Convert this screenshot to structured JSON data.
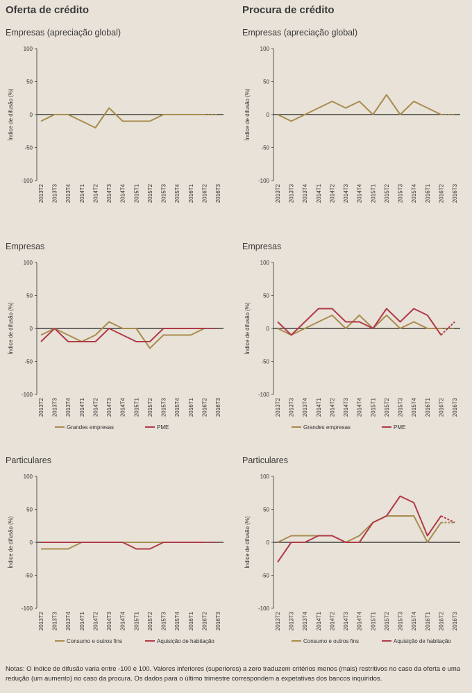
{
  "headers": {
    "left": "Oferta de crédito",
    "right": "Procura de crédito"
  },
  "colors": {
    "gold": "#a88c4e",
    "red": "#b13a48",
    "axis": "#555555",
    "zero": "#222222"
  },
  "notes": "Notas: O índice de difusão varia entre -100 e 100. Valores inferiores (superiores) a zero traduzem critérios menos (mais) restritivos no caso da oferta e uma redução (um aumento) no caso da procura. Os dados para o último trimestre correspondem a expetativas dos bancos inquiridos.",
  "chart_data": [
    {
      "id": "oferta-empresas-global",
      "type": "line",
      "title": "Empresas (apreciação global)",
      "ylabel": "Índice de difusão (%)",
      "ylim": [
        -100,
        100
      ],
      "yticks": [
        "100",
        "50",
        "0",
        "-50",
        "-100"
      ],
      "categories": [
        "2013T2",
        "2013T3",
        "2013T4",
        "2014T1",
        "2014T2",
        "2014T3",
        "2014T4",
        "2015T1",
        "2015T2",
        "2015T3",
        "2015T4",
        "2016T1",
        "2016T2",
        "2016T3"
      ],
      "series": [
        {
          "name": "",
          "color": "gold",
          "values": [
            -10,
            0,
            0,
            -10,
            -20,
            10,
            -10,
            -10,
            -10,
            0,
            0,
            0,
            0,
            0
          ],
          "dashed_last": true
        }
      ],
      "legend": []
    },
    {
      "id": "procura-empresas-global",
      "type": "line",
      "title": "Empresas (apreciação global)",
      "ylabel": "Índice de difusão (%)",
      "ylim": [
        -100,
        100
      ],
      "yticks": [
        "100",
        "50",
        "0",
        "-50",
        "-100"
      ],
      "categories": [
        "2013T2",
        "2013T3",
        "2013T4",
        "2014T1",
        "2014T2",
        "2014T3",
        "2014T4",
        "2015T1",
        "2015T2",
        "2015T3",
        "2015T4",
        "2016T1",
        "2016T2",
        "2016T3"
      ],
      "series": [
        {
          "name": "",
          "color": "gold",
          "values": [
            0,
            -10,
            0,
            10,
            20,
            10,
            20,
            0,
            30,
            0,
            20,
            10,
            0,
            0
          ],
          "dashed_last": true
        }
      ],
      "legend": []
    },
    {
      "id": "oferta-empresas",
      "type": "line",
      "title": "Empresas",
      "ylabel": "Índice de difusão (%)",
      "ylim": [
        -100,
        100
      ],
      "yticks": [
        "100",
        "50",
        "0",
        "-50",
        "-100"
      ],
      "categories": [
        "2013T2",
        "2013T3",
        "2013T4",
        "2014T1",
        "2014T2",
        "2014T3",
        "2014T4",
        "2015T1",
        "2015T2",
        "2015T3",
        "2015T4",
        "2016T1",
        "2016T2",
        "2016T3"
      ],
      "series": [
        {
          "name": "Grandes empresas",
          "color": "gold",
          "values": [
            -10,
            0,
            -10,
            -20,
            -10,
            10,
            0,
            0,
            -30,
            -10,
            -10,
            -10,
            0,
            0
          ],
          "dashed_last": true
        },
        {
          "name": "PME",
          "color": "red",
          "values": [
            -20,
            0,
            -20,
            -20,
            -20,
            0,
            -10,
            -20,
            -20,
            0,
            0,
            0,
            0,
            0
          ],
          "dashed_last": true
        }
      ],
      "legend": [
        "Grandes empresas",
        "PME"
      ]
    },
    {
      "id": "procura-empresas",
      "type": "line",
      "title": "Empresas",
      "ylabel": "Índice de difusão (%)",
      "ylim": [
        -100,
        100
      ],
      "yticks": [
        "100",
        "50",
        "0",
        "-50",
        "-100"
      ],
      "categories": [
        "2013T2",
        "2013T3",
        "2013T4",
        "2014T1",
        "2014T2",
        "2014T3",
        "2014T4",
        "2015T1",
        "2015T2",
        "2015T3",
        "2015T4",
        "2016T1",
        "2016T2",
        "2016T3"
      ],
      "series": [
        {
          "name": "Grandes empresas",
          "color": "gold",
          "values": [
            0,
            -10,
            0,
            10,
            20,
            0,
            20,
            0,
            20,
            0,
            10,
            0,
            0,
            0
          ],
          "dashed_last": true
        },
        {
          "name": "PME",
          "color": "red",
          "values": [
            10,
            -10,
            10,
            30,
            30,
            10,
            10,
            0,
            30,
            10,
            30,
            20,
            -10,
            10
          ],
          "dashed_last": true
        }
      ],
      "legend": [
        "Grandes empresas",
        "PME"
      ]
    },
    {
      "id": "oferta-particulares",
      "type": "line",
      "title": "Particulares",
      "ylabel": "Índice de difusão (%)",
      "ylim": [
        -100,
        100
      ],
      "yticks": [
        "100",
        "50",
        "0",
        "-50",
        "-100"
      ],
      "categories": [
        "2013T2",
        "2013T3",
        "2013T4",
        "2014T1",
        "2014T2",
        "2014T3",
        "2014T4",
        "2015T1",
        "2015T2",
        "2015T3",
        "2015T4",
        "2016T1",
        "2016T2",
        "2016T3"
      ],
      "series": [
        {
          "name": "Consumo e outros fins",
          "color": "gold",
          "values": [
            -10,
            -10,
            -10,
            0,
            0,
            0,
            0,
            0,
            0,
            0,
            0,
            0,
            0,
            0
          ],
          "dashed_last": true
        },
        {
          "name": "Aquisição de habitação",
          "color": "red",
          "values": [
            0,
            0,
            0,
            0,
            0,
            0,
            0,
            -10,
            -10,
            0,
            0,
            0,
            0,
            0
          ],
          "dashed_last": true
        }
      ],
      "legend": [
        "Consumo e outros fins",
        "Aquisição de habitação"
      ]
    },
    {
      "id": "procura-particulares",
      "type": "line",
      "title": "Particulares",
      "ylabel": "Índice de difusão (%)",
      "ylim": [
        -100,
        100
      ],
      "yticks": [
        "100",
        "50",
        "0",
        "-50",
        "-100"
      ],
      "categories": [
        "2013T2",
        "2013T3",
        "2013T4",
        "2014T1",
        "2014T2",
        "2014T3",
        "2014T4",
        "2015T1",
        "2015T2",
        "2015T3",
        "2015T4",
        "2016T1",
        "2016T2",
        "2016T3"
      ],
      "series": [
        {
          "name": "Consumo e outros fins",
          "color": "gold",
          "values": [
            0,
            10,
            10,
            10,
            10,
            0,
            10,
            30,
            40,
            40,
            40,
            0,
            30,
            30
          ],
          "dashed_last": true
        },
        {
          "name": "Aquisição de habitação",
          "color": "red",
          "values": [
            -30,
            0,
            0,
            10,
            10,
            0,
            0,
            30,
            40,
            70,
            60,
            10,
            40,
            30
          ],
          "dashed_last": true
        }
      ],
      "legend": [
        "Consumo e outros fins",
        "Aquisição de habitação"
      ]
    }
  ]
}
